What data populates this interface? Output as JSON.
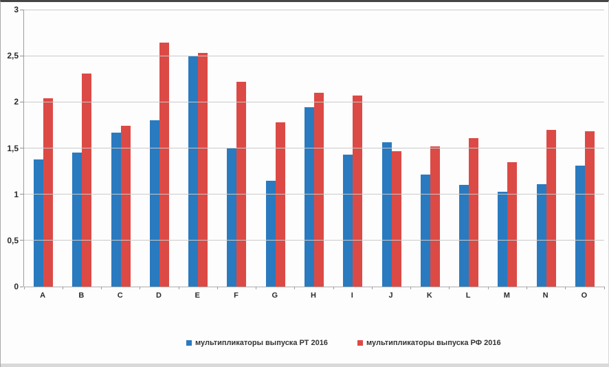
{
  "chart_data": {
    "type": "bar",
    "title": "",
    "xlabel": "",
    "ylabel": "",
    "categories": [
      "A",
      "B",
      "C",
      "D",
      "E",
      "F",
      "G",
      "H",
      "I",
      "J",
      "K",
      "L",
      "M",
      "N",
      "O"
    ],
    "series": [
      {
        "name": "мультипликаторы выпуска РТ 2016",
        "color": "#2a7abf",
        "values": [
          1.38,
          1.45,
          1.67,
          1.8,
          2.5,
          1.5,
          1.15,
          1.94,
          1.43,
          1.56,
          1.21,
          1.1,
          1.03,
          1.11,
          1.31
        ]
      },
      {
        "name": "мультипликаторы выпуска РФ 2016",
        "color": "#dc4a46",
        "values": [
          2.04,
          2.31,
          1.74,
          2.64,
          2.53,
          2.22,
          1.78,
          2.1,
          2.07,
          1.47,
          1.52,
          1.61,
          1.35,
          1.7,
          1.68
        ]
      }
    ],
    "ylim": [
      0,
      3
    ],
    "ytick_step": 0.5,
    "ytick_labels": [
      "0",
      "0,5",
      "1",
      "1,5",
      "2",
      "2,5",
      "3"
    ],
    "grid": true,
    "legend_position": "bottom"
  }
}
